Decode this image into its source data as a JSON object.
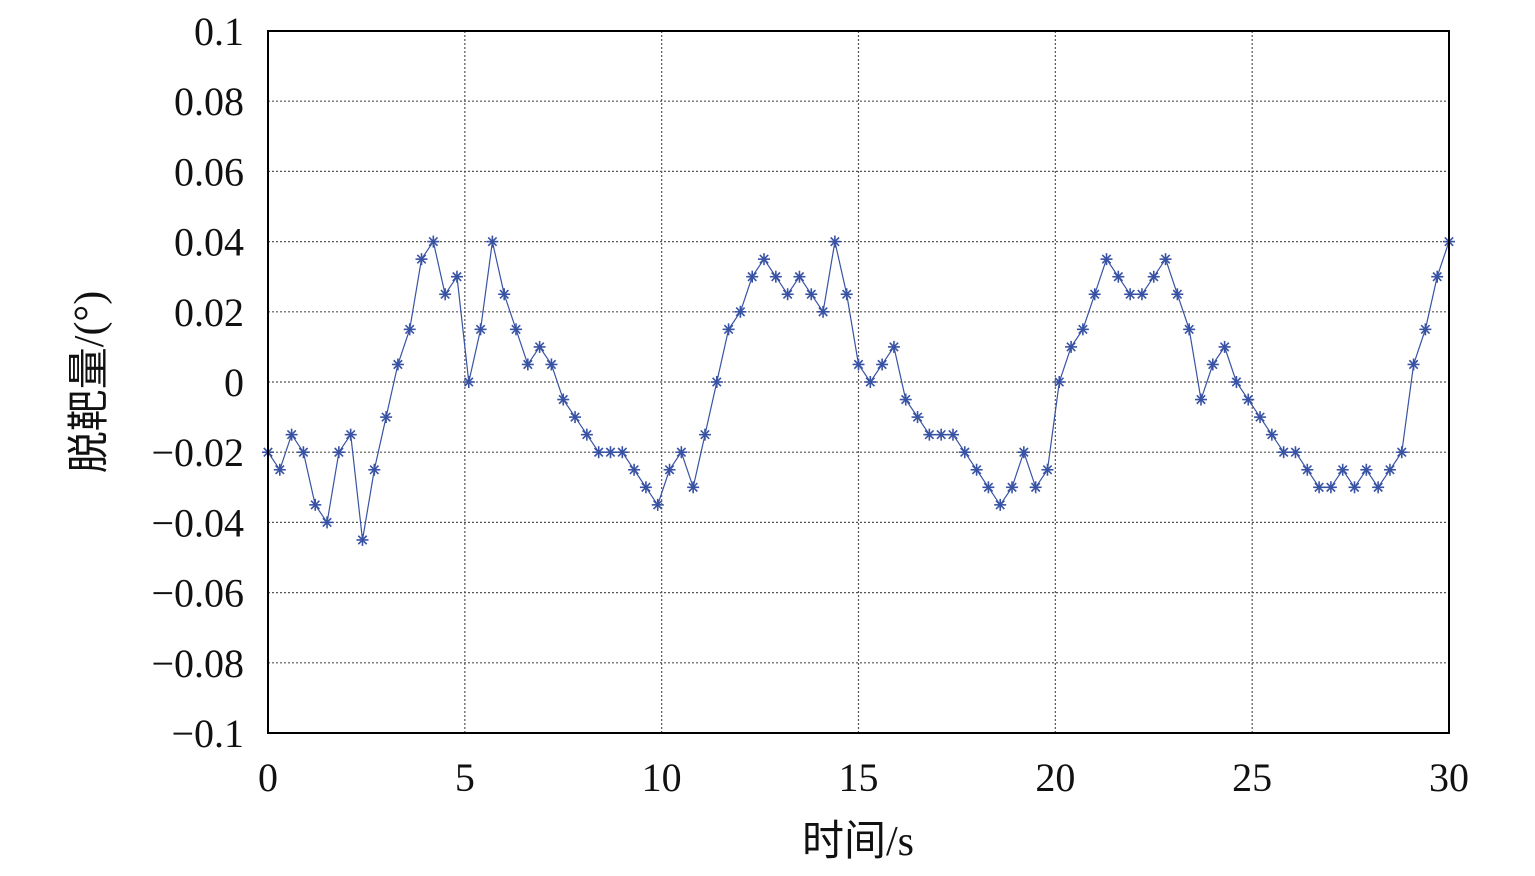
{
  "chart_data": {
    "type": "line",
    "xlabel": "时间/s",
    "ylabel": "脱靶量/(°)",
    "xlim": [
      0,
      30
    ],
    "ylim": [
      -0.1,
      0.1
    ],
    "x_ticks": [
      "0",
      "5",
      "10",
      "15",
      "20",
      "25",
      "30"
    ],
    "y_ticks": [
      "0.1",
      "0.08",
      "0.06",
      "0.04",
      "0.02",
      "0",
      "−0.02",
      "−0.04",
      "−0.06",
      "−0.08",
      "−0.1"
    ],
    "grid": true,
    "markers": "asterisk",
    "color": "#3953a4",
    "series": [
      {
        "x": [
          0,
          0.3,
          0.6,
          0.9,
          1.2,
          1.5,
          1.8,
          2.1,
          2.4,
          2.7,
          3.0,
          3.3,
          3.6,
          3.9,
          4.2,
          4.5,
          4.8,
          5.1,
          5.4,
          5.7,
          6.0,
          6.3,
          6.6,
          6.9,
          7.2,
          7.5,
          7.8,
          8.1,
          8.4,
          8.7,
          9.0,
          9.3,
          9.6,
          9.9,
          10.2,
          10.5,
          10.8,
          11.1,
          11.4,
          11.7,
          12.0,
          12.3,
          12.6,
          12.9,
          13.2,
          13.5,
          13.8,
          14.1,
          14.4,
          14.7,
          15.0,
          15.3,
          15.6,
          15.9,
          16.2,
          16.5,
          16.8,
          17.1,
          17.4,
          17.7,
          18.0,
          18.3,
          18.6,
          18.9,
          19.2,
          19.5,
          19.8,
          20.1,
          20.4,
          20.7,
          21.0,
          21.3,
          21.6,
          21.9,
          22.2,
          22.5,
          22.8,
          23.1,
          23.4,
          23.7,
          24.0,
          24.3,
          24.6,
          24.9,
          25.2,
          25.5,
          25.8,
          26.1,
          26.4,
          26.7,
          27.0,
          27.3,
          27.6,
          27.9,
          28.2,
          28.5,
          28.8,
          29.1,
          29.4,
          29.7,
          30.0
        ],
        "y": [
          -0.02,
          -0.025,
          -0.015,
          -0.02,
          -0.035,
          -0.04,
          -0.02,
          -0.015,
          -0.045,
          -0.025,
          -0.01,
          0.005,
          0.015,
          0.035,
          0.04,
          0.025,
          0.03,
          0.0,
          0.015,
          0.04,
          0.025,
          0.015,
          0.005,
          0.01,
          0.005,
          -0.005,
          -0.01,
          -0.015,
          -0.02,
          -0.02,
          -0.02,
          -0.025,
          -0.03,
          -0.035,
          -0.025,
          -0.02,
          -0.03,
          -0.015,
          0.0,
          0.015,
          0.02,
          0.03,
          0.035,
          0.03,
          0.025,
          0.03,
          0.025,
          0.02,
          0.04,
          0.025,
          0.005,
          0.0,
          0.005,
          0.01,
          -0.005,
          -0.01,
          -0.015,
          -0.015,
          -0.015,
          -0.02,
          -0.025,
          -0.03,
          -0.035,
          -0.03,
          -0.02,
          -0.03,
          -0.025,
          0.0,
          0.01,
          0.015,
          0.025,
          0.035,
          0.03,
          0.025,
          0.025,
          0.03,
          0.035,
          0.025,
          0.015,
          -0.005,
          0.005,
          0.01,
          0.0,
          -0.005,
          -0.01,
          -0.015,
          -0.02,
          -0.02,
          -0.025,
          -0.03,
          -0.03,
          -0.025,
          -0.03,
          -0.025,
          -0.03,
          -0.025,
          -0.02,
          0.005,
          0.015,
          0.03,
          0.04
        ]
      }
    ]
  }
}
